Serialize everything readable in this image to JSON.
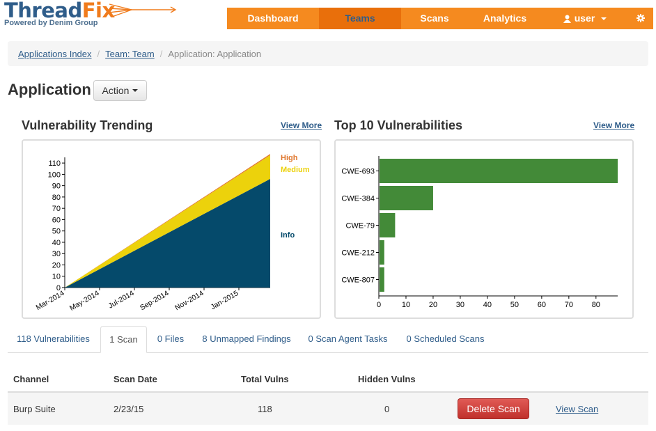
{
  "app": {
    "logo_main_1": "Thread",
    "logo_main_2": "Fix",
    "logo_sub": "Powered by Denim Group"
  },
  "nav": {
    "items": [
      {
        "label": "Dashboard"
      },
      {
        "label": "Teams"
      },
      {
        "label": "Scans"
      },
      {
        "label": "Analytics"
      }
    ],
    "user_label": "user",
    "active": "Teams",
    "accent": "#f58a1f"
  },
  "breadcrumb": {
    "items": [
      "Applications Index",
      "Team: Team"
    ],
    "current": "Application: Application"
  },
  "page": {
    "title": "Application",
    "action_label": "Action"
  },
  "trending": {
    "title": "Vulnerability Trending",
    "view_more": "View More"
  },
  "top10": {
    "title": "Top 10 Vulnerabilities",
    "view_more": "View More"
  },
  "chart_data": [
    {
      "type": "area",
      "title": "Vulnerability Trending",
      "x": [
        "Mar-2014",
        "May-2014",
        "Jul-2014",
        "Sep-2014",
        "Nov-2014",
        "Jan-2015"
      ],
      "ylim": [
        0,
        115
      ],
      "yticks": [
        0,
        10,
        20,
        30,
        40,
        50,
        60,
        70,
        80,
        90,
        100,
        110
      ],
      "stacked": true,
      "series": [
        {
          "name": "Info",
          "color": "#054a6b",
          "start": 0,
          "end": 96
        },
        {
          "name": "Medium",
          "color": "#ecd20c",
          "start": 0,
          "end": 21
        },
        {
          "name": "High",
          "color": "#e0772e",
          "start": 0,
          "end": 1
        }
      ],
      "legend": "right"
    },
    {
      "type": "bar",
      "orientation": "horizontal",
      "title": "Top 10 Vulnerabilities",
      "categories": [
        "CWE-693",
        "CWE-384",
        "CWE-79",
        "CWE-212",
        "CWE-807"
      ],
      "values": [
        88,
        20,
        6,
        2,
        2
      ],
      "xlim": [
        0,
        88
      ],
      "xticks": [
        0,
        10,
        20,
        30,
        40,
        50,
        60,
        70,
        80
      ],
      "color": "#438a38"
    }
  ],
  "tabs": [
    {
      "label": "118 Vulnerabilities"
    },
    {
      "label": "1 Scan"
    },
    {
      "label": "0 Files"
    },
    {
      "label": "8 Unmapped Findings"
    },
    {
      "label": "0 Scan Agent Tasks"
    },
    {
      "label": "0 Scheduled Scans"
    }
  ],
  "active_tab": "1 Scan",
  "scans_table": {
    "headers": [
      "Channel",
      "Scan Date",
      "Total Vulns",
      "Hidden Vulns"
    ],
    "rows": [
      {
        "channel": "Burp Suite",
        "date": "2/23/15",
        "total": "118",
        "hidden": "0"
      }
    ],
    "delete_label": "Delete Scan",
    "view_label": "View Scan"
  }
}
